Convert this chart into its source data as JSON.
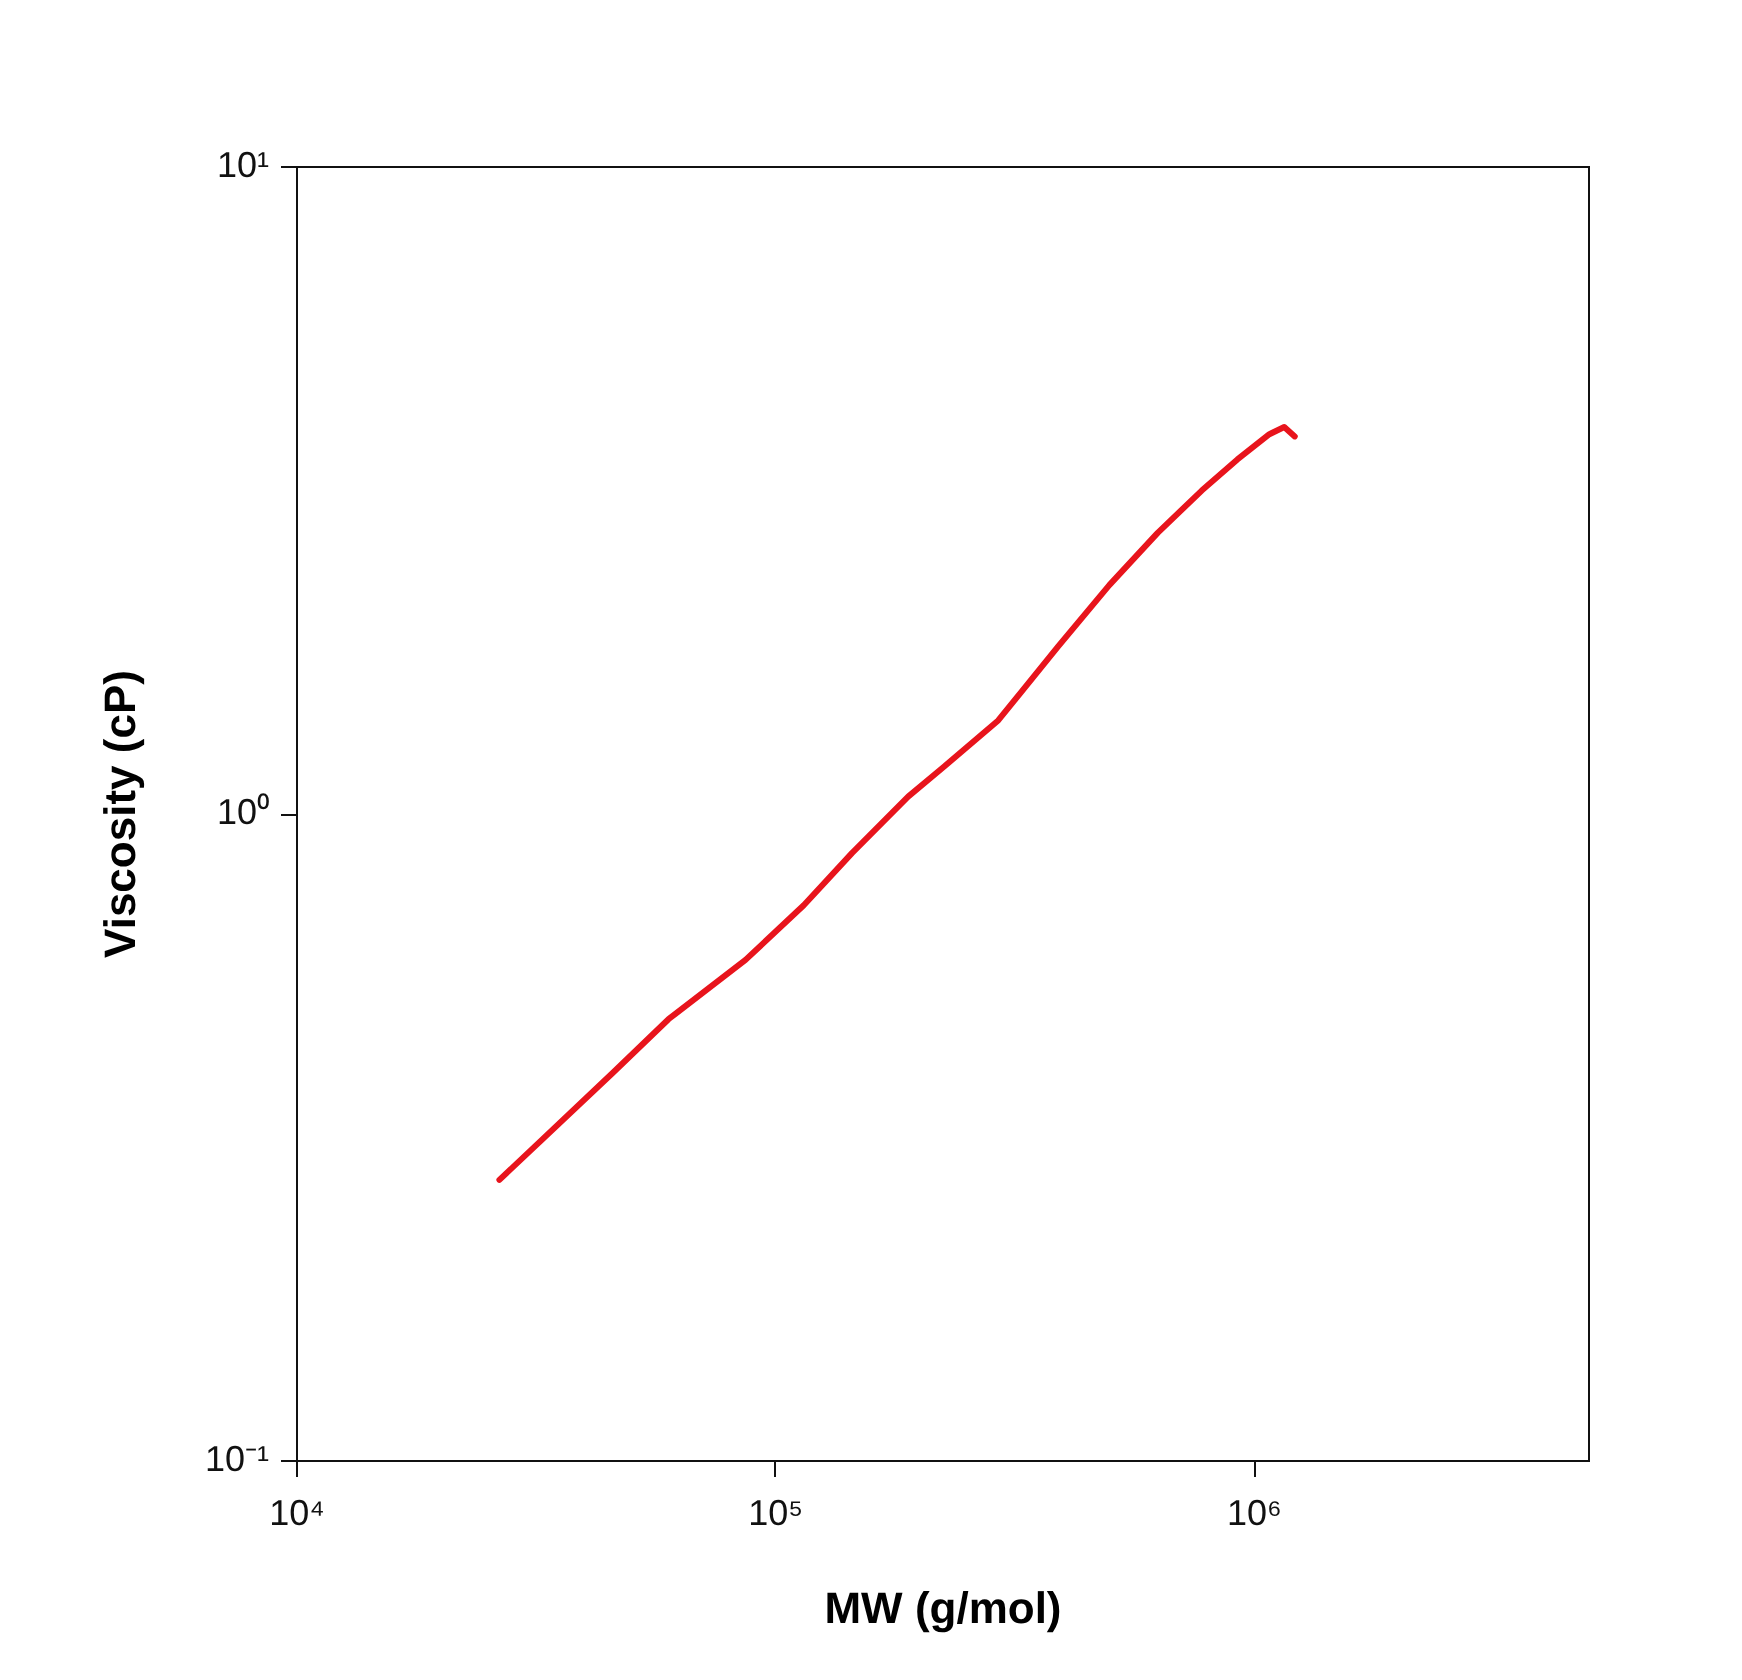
{
  "chart_data": {
    "type": "line",
    "xlabel": "MW (g/mol)",
    "ylabel": "Viscosity (cP)",
    "log": "xy",
    "grid": false,
    "marker": "none",
    "line_style": "solid",
    "xlim": [
      10000,
      5000000
    ],
    "ylim": [
      0.1,
      10
    ],
    "xticks": [
      {
        "value": 10000,
        "label": "10⁴"
      },
      {
        "value": 100000,
        "label": "10⁵"
      },
      {
        "value": 1000000,
        "label": "10⁶"
      }
    ],
    "yticks": [
      {
        "value": 0.1,
        "label": "10⁻¹"
      },
      {
        "value": 1,
        "label": "10⁰"
      },
      {
        "value": 10,
        "label": "10¹"
      }
    ],
    "series": [
      {
        "color": "#e8141c",
        "x": [
          26600,
          33000,
          45800,
          60000,
          86900,
          115000,
          145000,
          190000,
          226000,
          293000,
          391000,
          500000,
          631000,
          780000,
          926000,
          1080000,
          1160000,
          1220000
        ],
        "values": [
          0.271,
          0.315,
          0.396,
          0.48,
          0.593,
          0.72,
          0.867,
          1.06,
          1.18,
          1.39,
          1.81,
          2.25,
          2.71,
          3.15,
          3.52,
          3.85,
          3.95,
          3.82
        ]
      }
    ]
  }
}
